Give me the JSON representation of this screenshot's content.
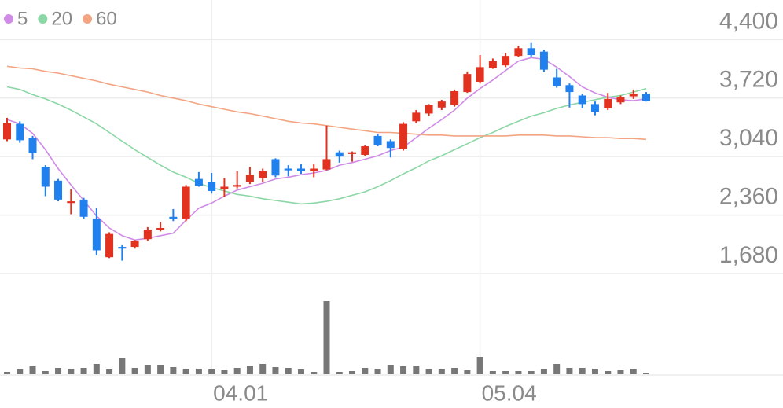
{
  "chart_data": {
    "type": "candlestick",
    "categories": [
      null,
      null,
      null,
      null,
      null,
      null,
      null,
      null,
      null,
      null,
      null,
      null,
      null,
      null,
      null,
      null,
      "04.01",
      null,
      null,
      null,
      null,
      null,
      null,
      null,
      null,
      null,
      null,
      null,
      null,
      null,
      null,
      null,
      null,
      null,
      null,
      null,
      null,
      "05.04",
      null,
      null,
      null,
      null,
      null,
      null,
      null,
      null,
      null,
      null,
      null,
      null,
      null
    ],
    "open": [
      3240,
      3420,
      3260,
      2920,
      2760,
      2500,
      2540,
      2320,
      1870,
      1990,
      1990,
      2080,
      2190,
      2340,
      2320,
      2780,
      2740,
      2660,
      2690,
      2740,
      2790,
      3010,
      2900,
      2900,
      2870,
      2890,
      3090,
      3070,
      3060,
      3280,
      3220,
      3130,
      3450,
      3540,
      3610,
      3640,
      3790,
      3910,
      4070,
      4100,
      4210,
      4300,
      4260,
      3960,
      3870,
      3750,
      3650,
      3600,
      3670,
      3740,
      3770
    ],
    "high": [
      3490,
      3450,
      3280,
      2940,
      2780,
      2660,
      2560,
      2440,
      2160,
      2010,
      2070,
      2220,
      2280,
      2430,
      2710,
      2860,
      2850,
      2790,
      2870,
      2920,
      2900,
      3020,
      2940,
      2950,
      2950,
      3400,
      3110,
      3100,
      3170,
      3300,
      3240,
      3440,
      3580,
      3650,
      3700,
      3820,
      4030,
      4220,
      4180,
      4240,
      4330,
      4360,
      4280,
      4060,
      3890,
      3770,
      3680,
      3780,
      3750,
      3820,
      3790
    ],
    "low": [
      3220,
      3200,
      3010,
      2580,
      2520,
      2370,
      2320,
      1890,
      1860,
      1830,
      1970,
      2060,
      2170,
      2290,
      2290,
      2690,
      2610,
      2570,
      2670,
      2720,
      2740,
      2800,
      2810,
      2840,
      2800,
      2880,
      2970,
      2980,
      3050,
      3160,
      3030,
      3110,
      3430,
      3510,
      3580,
      3620,
      3780,
      3890,
      4060,
      4080,
      4200,
      4200,
      4020,
      3840,
      3610,
      3600,
      3520,
      3580,
      3650,
      3710,
      3680
    ],
    "close": [
      3430,
      3230,
      3080,
      2690,
      2540,
      2520,
      2340,
      1950,
      2140,
      1970,
      2060,
      2190,
      2210,
      2320,
      2690,
      2700,
      2640,
      2690,
      2710,
      2830,
      2870,
      2820,
      2880,
      2870,
      2900,
      3010,
      3040,
      3090,
      3160,
      3170,
      3140,
      3420,
      3550,
      3640,
      3680,
      3800,
      4000,
      4080,
      4150,
      4210,
      4300,
      4220,
      4050,
      3860,
      3790,
      3650,
      3560,
      3710,
      3730,
      3770,
      3690
    ],
    "up_color": "#e2321f",
    "down_color": "#1f80ee",
    "series": [
      {
        "name": "5",
        "color": "#cf8be6",
        "values": [
          3470,
          3420,
          3310,
          3120,
          2900,
          2710,
          2530,
          2350,
          2210,
          2120,
          2070,
          2090,
          2120,
          2150,
          2300,
          2440,
          2500,
          2580,
          2650,
          2690,
          2730,
          2780,
          2800,
          2830,
          2850,
          2880,
          2940,
          2970,
          3010,
          3050,
          3110,
          3150,
          3260,
          3370,
          3470,
          3580,
          3720,
          3830,
          3930,
          4040,
          4150,
          4190,
          4170,
          4080,
          3970,
          3850,
          3780,
          3730,
          3700,
          3690,
          3710
        ]
      },
      {
        "name": "20",
        "color": "#8bd7a5",
        "values": [
          3850,
          3820,
          3760,
          3710,
          3650,
          3580,
          3500,
          3420,
          3320,
          3220,
          3120,
          3030,
          2940,
          2860,
          2800,
          2730,
          2680,
          2640,
          2600,
          2580,
          2550,
          2530,
          2510,
          2490,
          2500,
          2520,
          2550,
          2590,
          2630,
          2690,
          2760,
          2840,
          2910,
          2990,
          3050,
          3120,
          3190,
          3260,
          3320,
          3390,
          3450,
          3510,
          3550,
          3600,
          3640,
          3670,
          3700,
          3730,
          3750,
          3790,
          3830
        ]
      },
      {
        "name": "60",
        "color": "#f3a583",
        "values": [
          4090,
          4070,
          4060,
          4030,
          4010,
          3980,
          3950,
          3920,
          3880,
          3850,
          3820,
          3790,
          3750,
          3720,
          3690,
          3650,
          3620,
          3590,
          3560,
          3540,
          3510,
          3480,
          3450,
          3430,
          3420,
          3400,
          3380,
          3360,
          3340,
          3320,
          3320,
          3310,
          3300,
          3290,
          3290,
          3280,
          3280,
          3280,
          3280,
          3280,
          3290,
          3290,
          3290,
          3280,
          3280,
          3270,
          3260,
          3260,
          3250,
          3250,
          3240
        ]
      }
    ],
    "volume": {
      "color": "#777777",
      "ylim": [
        0,
        100
      ],
      "values": [
        3,
        6,
        10,
        4,
        8,
        7,
        8,
        13,
        6,
        20,
        8,
        12,
        12,
        9,
        7,
        7,
        6,
        5,
        8,
        11,
        13,
        9,
        8,
        6,
        3,
        93,
        3,
        4,
        8,
        7,
        12,
        10,
        11,
        6,
        7,
        8,
        5,
        22,
        4,
        4,
        4,
        4,
        6,
        13,
        8,
        8,
        7,
        4,
        5,
        7,
        2
      ]
    },
    "ylim": [
      1680,
      4860
    ],
    "yticks": [
      {
        "value": 1680,
        "label": "1,680"
      },
      {
        "value": 2360,
        "label": "2,360"
      },
      {
        "value": 3040,
        "label": "3,040"
      },
      {
        "value": 3720,
        "label": "3,720"
      },
      {
        "value": 4400,
        "label": "4,400"
      }
    ],
    "grid": true
  }
}
